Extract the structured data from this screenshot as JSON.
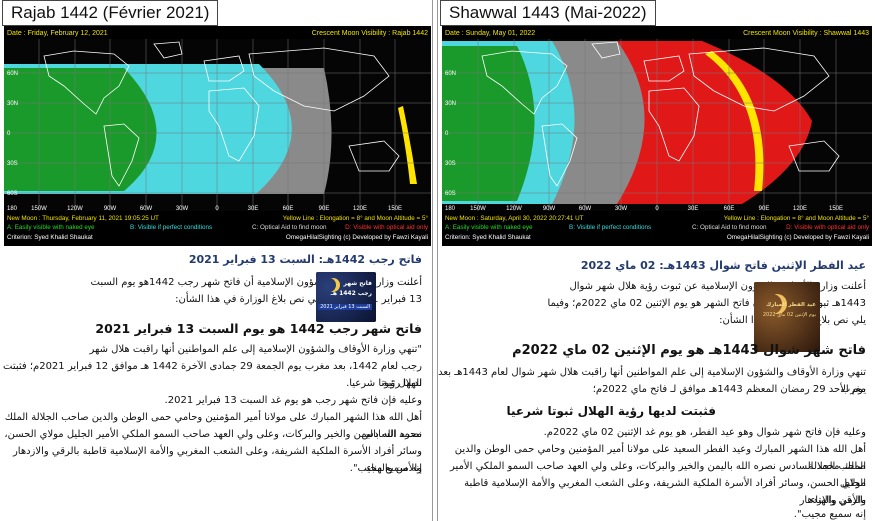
{
  "left": {
    "title": "Rajab 1442 (Février 2021)",
    "map": {
      "date_label": "Date : Friday, February 12, 2021",
      "visibility_label": "Crescent Moon Visibility : Rajab  1442",
      "new_moon_label": "New Moon : Thursday, February 11, 2021  19:05:25  UT",
      "yellow_line_label": "Yellow Line : Elongation = 8° and Moon Altitude = 5°",
      "legend_a": "A: Easily visible with naked eye",
      "legend_b": "B: Visible if perfect conditions",
      "legend_c": "C: Optical Aid to find moon",
      "legend_d": "D: Visible with optical aid only",
      "criterion": "Criterion: Syed Khalid Shaukat",
      "credit": "OmegaHilalSighting  (c)  Developed by Fawzi Kayali",
      "lat_labels": [
        "60N",
        "30N",
        "0",
        "30S",
        "60S"
      ],
      "lon_labels": [
        "180",
        "150W",
        "120W",
        "90W",
        "60W",
        "30W",
        "0",
        "30E",
        "60E",
        "90E",
        "120E",
        "150E"
      ]
    },
    "doc": {
      "subtitle": "فاتح رجب 1442هـ: السبت 13 فبراير 2021",
      "intro": [
        "أعلنت وزارة الأوقاف والشؤون الإسلامية أن فاتح شهر رجب 1442هو يوم السبت",
        "13 فبراير 2021، وفيما يلي نص بلاغ الوزارة في هذا الشأن:"
      ],
      "thumb_lines": [
        "فاتح شهر",
        "رجب 1442 هـ",
        "السبت 13 فبراير 2021"
      ],
      "heading": "فاتح شهر رجب 1442 هو يوم السبت 13 فبراير 2021",
      "body": [
        "\"تنهي وزارة الأوقاف والشؤون الإسلامية إلى علم المواطنين أنها راقبت هلال شهر",
        "رجب لعام 1442، بعد مغرب يوم الجمعة 29 جمادى الآخرة 1442 هـ موافق 12 فبراير 2021م؛ فثبتت لديها رؤية",
        "الهلال ثبوتا شرعيا.",
        "وعليه فإن فاتح شهر رجب هو يوم غد السبت 13 فبراير 2021.",
        "أهل الله هذا الشهر المبارك على مولانا أمير المؤمنين وحامي حمى الوطن والدين صاحب الجلالة الملك محمد السادس",
        "نصره الله باليمن والخير والبركات، وعلى ولي العهد صاحب السمو الملكي الأمير الجليل مولاي الحسن،",
        "وسائر أفراد الأسرة الملكية الشريفة، وعلى الشعب المغربي والأمة الإسلامية قاطبة بالرقي والازدهار والأمن والهناء.",
        "إنه سميع مجيب\"."
      ]
    }
  },
  "right": {
    "title": "Shawwal 1443 (Mai-2022)",
    "map": {
      "date_label": "Date : Sunday, May 01, 2022",
      "visibility_label": "Crescent Moon Visibility : Shawwal  1443",
      "new_moon_label": "New Moon : Saturday, April 30, 2022  20:27:41  UT",
      "yellow_line_label": "Yellow Line : Elongation = 8° and Moon Altitude = 5°",
      "legend_a": "A: Easily visible with naked eye",
      "legend_b": "B: Visible if perfect conditions",
      "legend_c": "C: Optical Aid to find moon",
      "legend_d": "D: Visible with optical aid only",
      "criterion": "Criterion: Syed Khalid Shaukat",
      "credit": "OmegaHilalSighting  (c)  Developed by Fawzi Kayali",
      "lat_labels": [
        "60N",
        "30N",
        "0",
        "30S",
        "60S"
      ],
      "lon_labels": [
        "180",
        "150W",
        "120W",
        "90W",
        "60W",
        "30W",
        "0",
        "30E",
        "60E",
        "90E",
        "120E",
        "150E"
      ]
    },
    "doc": {
      "subtitle": "عيد الفطر الإثنين فاتح شوال 1443هـ: 02 ماي 2022",
      "intro": [
        "أعلنت وزارة الأوقاف والشؤون الإسلامية عن ثبوت رؤية هلال شهر شوال",
        "1443هـ ثبوتا شرعيا، ليكون فاتح الشهر هو يوم الإثنين 02 ماي 2022م؛ وفيما",
        "يلي نص بلاغ الوزارة في هذا الشأن:"
      ],
      "thumb_lines": [
        "عيد الفطر المبارك",
        "يوم الإثنين 02 ماي 2022"
      ],
      "heading": "فاتح شهر شوال 1443هـ هو يوم الإثنين 02 ماي 2022م",
      "body1": [
        "تنهي وزارة الأوقاف والشؤون الإسلامية إلى علم المواطنين أنها راقبت هلال شهر شوال لعام 1443هـ بعد مغرب",
        "يوم الأحد 29 رمضان المعظم 1443هـ موافق لـ فاتح ماي 2022م؛"
      ],
      "heading2": "فثبتت لديها رؤية الهلال ثبوتا شرعيا",
      "body2": [
        "وعليه فإن فاتح شهر شوال وهو عيد الفطر، هو يوم غد الإثنين 02 ماي 2022م.",
        "أهل الله هذا الشهر المبارك وعيد الفطر السعيد على مولانا أمير المؤمنين وحامي حمى الوطن والدين صاحب الجلالة",
        "الملك محمد السادس نصره الله باليمن والخير والبركات، وعلى ولي العهد صاحب السمو الملكي الأمير الجليل",
        "مولاي الحسن، وسائر أفراد الأسرة الملكية الشريفة، وعلى الشعب المغربي والأمة الإسلامية قاطبة بالرقي والازدهار",
        "والأمن والهناء.",
        "إنه سميع مجيب\"."
      ]
    }
  },
  "colors": {
    "map_bg": "#000000",
    "zone_a": "#1a9a2a",
    "zone_b": "#4fd7e0",
    "zone_c": "#8a8a8a",
    "zone_d": "#e01818",
    "yellow_line": "#ffe400",
    "label_yellow": "#f2e400",
    "label_green": "#22dd22",
    "label_cyan": "#33dddd",
    "label_red": "#ff3333"
  }
}
